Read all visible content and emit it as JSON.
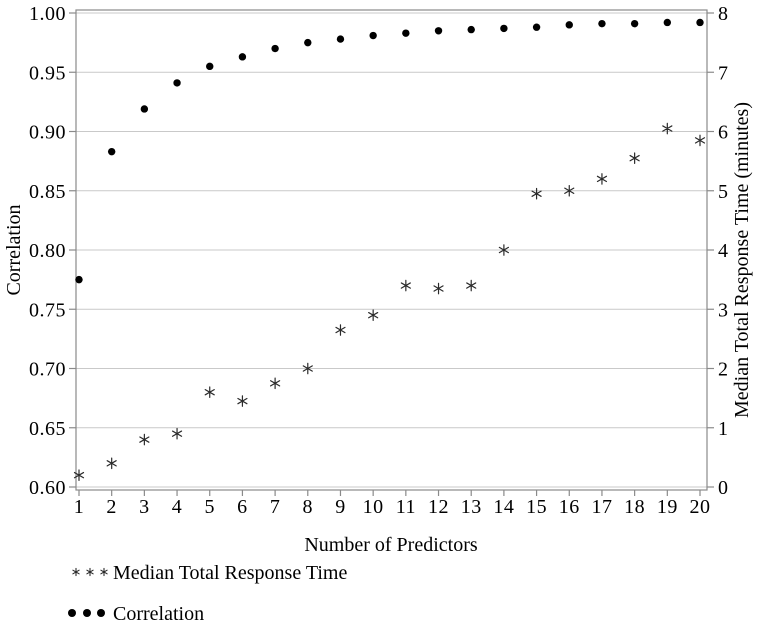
{
  "chart_data": {
    "type": "scatter",
    "x": [
      1,
      2,
      3,
      4,
      5,
      6,
      7,
      8,
      9,
      10,
      11,
      12,
      13,
      14,
      15,
      16,
      17,
      18,
      19,
      20
    ],
    "series": [
      {
        "name": "Correlation",
        "axis": "left",
        "marker": "dot",
        "values": [
          0.775,
          0.883,
          0.919,
          0.941,
          0.955,
          0.963,
          0.97,
          0.975,
          0.978,
          0.981,
          0.983,
          0.985,
          0.986,
          0.987,
          0.988,
          0.99,
          0.991,
          0.991,
          0.992,
          0.992
        ]
      },
      {
        "name": "Median Total Response Time",
        "axis": "right",
        "marker": "asterisk",
        "values": [
          0.2,
          0.4,
          0.8,
          0.9,
          1.6,
          1.45,
          1.75,
          2.0,
          2.65,
          2.9,
          3.4,
          3.35,
          3.4,
          4.0,
          4.95,
          5.0,
          5.2,
          5.55,
          6.05,
          5.85
        ]
      }
    ],
    "xlabel": "Number of Predictors",
    "x_ticks": [
      "1",
      "2",
      "3",
      "4",
      "5",
      "6",
      "7",
      "8",
      "9",
      "10",
      "11",
      "12",
      "13",
      "14",
      "15",
      "16",
      "17",
      "18",
      "19",
      "20"
    ],
    "left_axis": {
      "label": "Correlation",
      "min": 0.6,
      "max": 1.0,
      "tick_step": 0.05,
      "ticks": [
        "1.00",
        "0.95",
        "0.90",
        "0.85",
        "0.80",
        "0.75",
        "0.70",
        "0.65",
        "0.60"
      ]
    },
    "right_axis": {
      "label": "Median Total Response Time (minutes)",
      "min": 0,
      "max": 8,
      "tick_step": 1,
      "ticks": [
        "8",
        "7",
        "6",
        "5",
        "4",
        "3",
        "2",
        "1",
        "0"
      ]
    },
    "legend": [
      {
        "marker": "asterisk",
        "label": "Median Total Response Time"
      },
      {
        "marker": "dot",
        "label": "Correlation"
      }
    ],
    "grid": true,
    "legend_position": "bottom-left",
    "colors": {
      "background": "#ffffff",
      "dot": "#000000",
      "asterisk": "#2b2b2b",
      "grid": "#c9c9c9",
      "border": "#8a8a8a",
      "tick": "#8a8a8a",
      "text": "#000000"
    }
  }
}
